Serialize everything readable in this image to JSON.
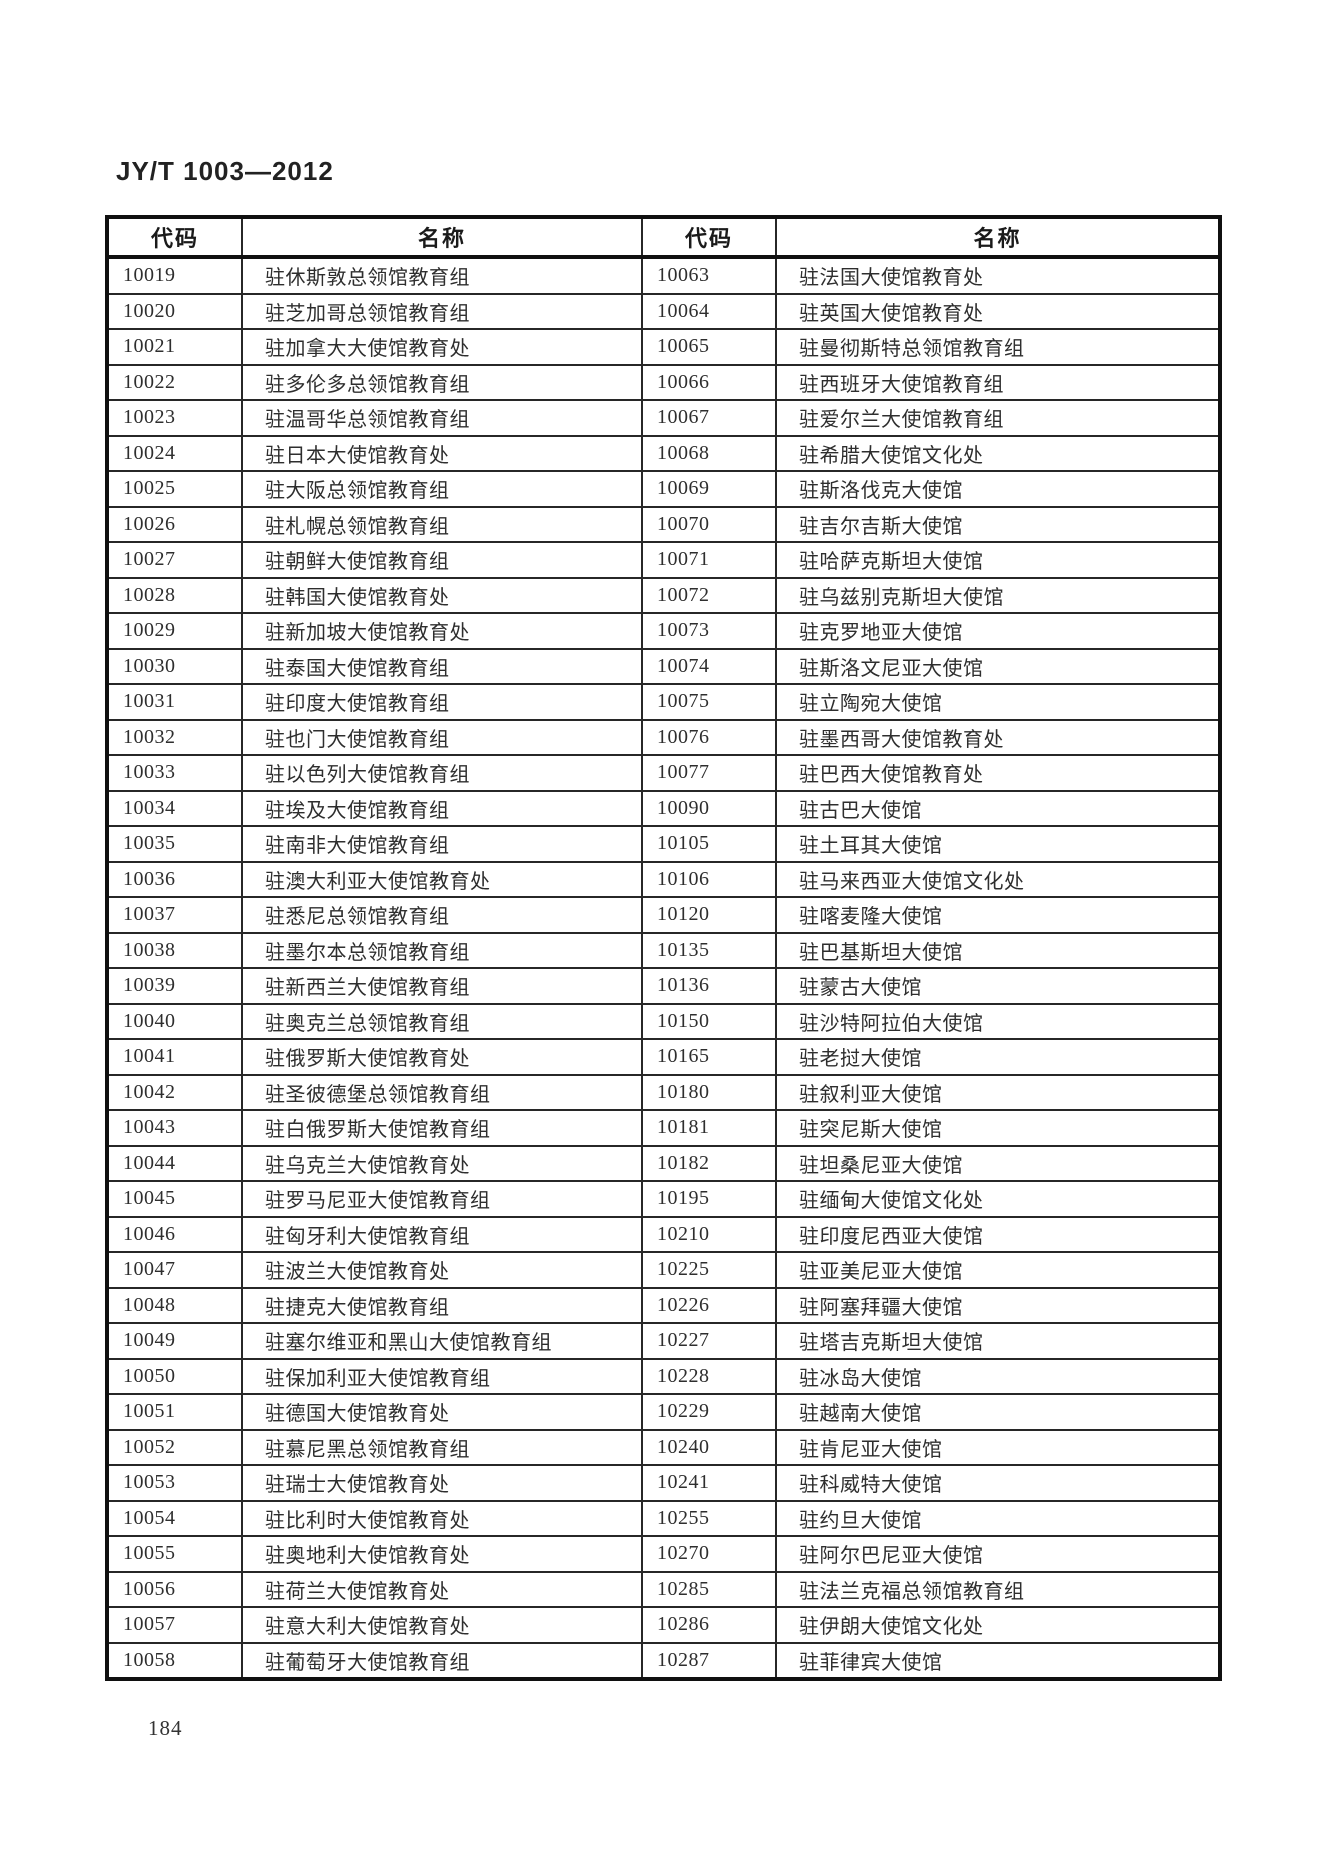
{
  "page": {
    "standard_code": "JY/T 1003—2012",
    "page_number": "184"
  },
  "table": {
    "headers": [
      "代码",
      "名称",
      "代码",
      "名称"
    ],
    "rows": [
      {
        "code_left": "10019",
        "name_left": "驻休斯敦总领馆教育组",
        "code_right": "10063",
        "name_right": "驻法国大使馆教育处"
      },
      {
        "code_left": "10020",
        "name_left": "驻芝加哥总领馆教育组",
        "code_right": "10064",
        "name_right": "驻英国大使馆教育处"
      },
      {
        "code_left": "10021",
        "name_left": "驻加拿大大使馆教育处",
        "code_right": "10065",
        "name_right": "驻曼彻斯特总领馆教育组"
      },
      {
        "code_left": "10022",
        "name_left": "驻多伦多总领馆教育组",
        "code_right": "10066",
        "name_right": "驻西班牙大使馆教育组"
      },
      {
        "code_left": "10023",
        "name_left": "驻温哥华总领馆教育组",
        "code_right": "10067",
        "name_right": "驻爱尔兰大使馆教育组"
      },
      {
        "code_left": "10024",
        "name_left": "驻日本大使馆教育处",
        "code_right": "10068",
        "name_right": "驻希腊大使馆文化处"
      },
      {
        "code_left": "10025",
        "name_left": "驻大阪总领馆教育组",
        "code_right": "10069",
        "name_right": "驻斯洛伐克大使馆"
      },
      {
        "code_left": "10026",
        "name_left": "驻札幌总领馆教育组",
        "code_right": "10070",
        "name_right": "驻吉尔吉斯大使馆"
      },
      {
        "code_left": "10027",
        "name_left": "驻朝鲜大使馆教育组",
        "code_right": "10071",
        "name_right": "驻哈萨克斯坦大使馆"
      },
      {
        "code_left": "10028",
        "name_left": "驻韩国大使馆教育处",
        "code_right": "10072",
        "name_right": "驻乌兹别克斯坦大使馆"
      },
      {
        "code_left": "10029",
        "name_left": "驻新加坡大使馆教育处",
        "code_right": "10073",
        "name_right": "驻克罗地亚大使馆"
      },
      {
        "code_left": "10030",
        "name_left": "驻泰国大使馆教育组",
        "code_right": "10074",
        "name_right": "驻斯洛文尼亚大使馆"
      },
      {
        "code_left": "10031",
        "name_left": "驻印度大使馆教育组",
        "code_right": "10075",
        "name_right": "驻立陶宛大使馆"
      },
      {
        "code_left": "10032",
        "name_left": "驻也门大使馆教育组",
        "code_right": "10076",
        "name_right": "驻墨西哥大使馆教育处"
      },
      {
        "code_left": "10033",
        "name_left": "驻以色列大使馆教育组",
        "code_right": "10077",
        "name_right": "驻巴西大使馆教育处"
      },
      {
        "code_left": "10034",
        "name_left": "驻埃及大使馆教育组",
        "code_right": "10090",
        "name_right": "驻古巴大使馆"
      },
      {
        "code_left": "10035",
        "name_left": "驻南非大使馆教育组",
        "code_right": "10105",
        "name_right": "驻土耳其大使馆"
      },
      {
        "code_left": "10036",
        "name_left": "驻澳大利亚大使馆教育处",
        "code_right": "10106",
        "name_right": "驻马来西亚大使馆文化处"
      },
      {
        "code_left": "10037",
        "name_left": "驻悉尼总领馆教育组",
        "code_right": "10120",
        "name_right": "驻喀麦隆大使馆"
      },
      {
        "code_left": "10038",
        "name_left": "驻墨尔本总领馆教育组",
        "code_right": "10135",
        "name_right": "驻巴基斯坦大使馆"
      },
      {
        "code_left": "10039",
        "name_left": "驻新西兰大使馆教育组",
        "code_right": "10136",
        "name_right": "驻蒙古大使馆"
      },
      {
        "code_left": "10040",
        "name_left": "驻奥克兰总领馆教育组",
        "code_right": "10150",
        "name_right": "驻沙特阿拉伯大使馆"
      },
      {
        "code_left": "10041",
        "name_left": "驻俄罗斯大使馆教育处",
        "code_right": "10165",
        "name_right": "驻老挝大使馆"
      },
      {
        "code_left": "10042",
        "name_left": "驻圣彼德堡总领馆教育组",
        "code_right": "10180",
        "name_right": "驻叙利亚大使馆"
      },
      {
        "code_left": "10043",
        "name_left": "驻白俄罗斯大使馆教育组",
        "code_right": "10181",
        "name_right": "驻突尼斯大使馆"
      },
      {
        "code_left": "10044",
        "name_left": "驻乌克兰大使馆教育处",
        "code_right": "10182",
        "name_right": "驻坦桑尼亚大使馆"
      },
      {
        "code_left": "10045",
        "name_left": "驻罗马尼亚大使馆教育组",
        "code_right": "10195",
        "name_right": "驻缅甸大使馆文化处"
      },
      {
        "code_left": "10046",
        "name_left": "驻匈牙利大使馆教育组",
        "code_right": "10210",
        "name_right": "驻印度尼西亚大使馆"
      },
      {
        "code_left": "10047",
        "name_left": "驻波兰大使馆教育处",
        "code_right": "10225",
        "name_right": "驻亚美尼亚大使馆"
      },
      {
        "code_left": "10048",
        "name_left": "驻捷克大使馆教育组",
        "code_right": "10226",
        "name_right": "驻阿塞拜疆大使馆"
      },
      {
        "code_left": "10049",
        "name_left": "驻塞尔维亚和黑山大使馆教育组",
        "code_right": "10227",
        "name_right": "驻塔吉克斯坦大使馆"
      },
      {
        "code_left": "10050",
        "name_left": "驻保加利亚大使馆教育组",
        "code_right": "10228",
        "name_right": "驻冰岛大使馆"
      },
      {
        "code_left": "10051",
        "name_left": "驻德国大使馆教育处",
        "code_right": "10229",
        "name_right": "驻越南大使馆"
      },
      {
        "code_left": "10052",
        "name_left": "驻慕尼黑总领馆教育组",
        "code_right": "10240",
        "name_right": "驻肯尼亚大使馆"
      },
      {
        "code_left": "10053",
        "name_left": "驻瑞士大使馆教育处",
        "code_right": "10241",
        "name_right": "驻科威特大使馆"
      },
      {
        "code_left": "10054",
        "name_left": "驻比利时大使馆教育处",
        "code_right": "10255",
        "name_right": "驻约旦大使馆"
      },
      {
        "code_left": "10055",
        "name_left": "驻奥地利大使馆教育处",
        "code_right": "10270",
        "name_right": "驻阿尔巴尼亚大使馆"
      },
      {
        "code_left": "10056",
        "name_left": "驻荷兰大使馆教育处",
        "code_right": "10285",
        "name_right": "驻法兰克福总领馆教育组"
      },
      {
        "code_left": "10057",
        "name_left": "驻意大利大使馆教育处",
        "code_right": "10286",
        "name_right": "驻伊朗大使馆文化处"
      },
      {
        "code_left": "10058",
        "name_left": "驻葡萄牙大使馆教育组",
        "code_right": "10287",
        "name_right": "驻菲律宾大使馆"
      }
    ]
  }
}
